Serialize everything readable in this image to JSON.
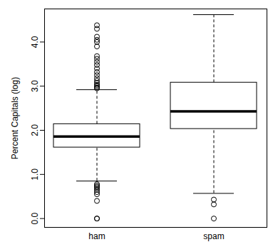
{
  "chart_data": {
    "type": "boxplot",
    "y_label": "Percent Capitals (log)",
    "categories": [
      "ham",
      "spam"
    ],
    "whisker_low": [
      0.85,
      0.57
    ],
    "q1": [
      1.61,
      2.03
    ],
    "median": [
      1.86,
      2.43
    ],
    "q3": [
      2.14,
      3.08
    ],
    "whisker_high": [
      2.92,
      4.62
    ],
    "outliers": [
      [
        2.95,
        2.97,
        3.0,
        3.03,
        3.07,
        3.12,
        3.18,
        3.25,
        3.32,
        3.4,
        3.48,
        3.55,
        3.62,
        3.68,
        3.9,
        4.0,
        4.05,
        4.12,
        4.3,
        4.38,
        0.78,
        0.75,
        0.72,
        0.69,
        0.65,
        0.6,
        0.55,
        0.4,
        0.0,
        0.0
      ],
      [
        0.43,
        0.32,
        0.0
      ]
    ],
    "color": "#000000",
    "ylim": [
      -0.2,
      4.75
    ],
    "yticks": [
      0,
      1,
      2,
      3,
      4
    ]
  }
}
